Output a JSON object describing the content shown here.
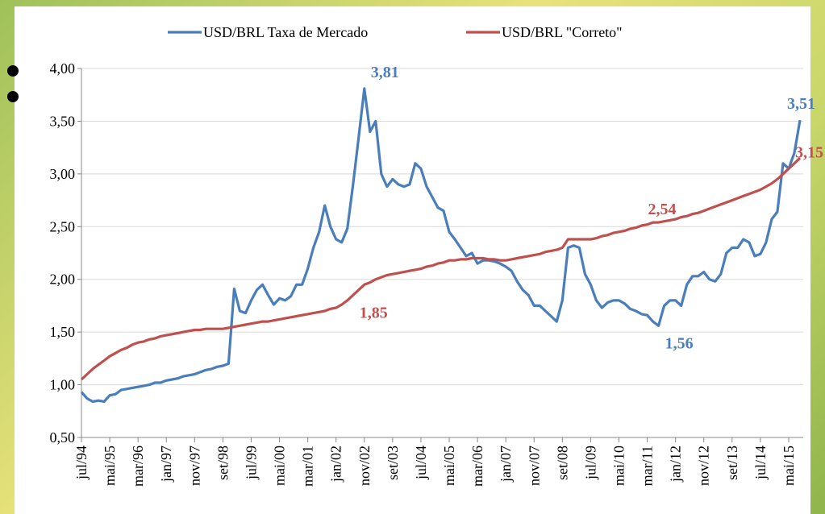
{
  "chart_data": {
    "type": "line",
    "categories": [
      "jul/94",
      null,
      null,
      null,
      null,
      "mai/95",
      null,
      null,
      null,
      null,
      "mar/96",
      null,
      null,
      null,
      null,
      "jan/97",
      null,
      null,
      null,
      null,
      "nov/97",
      null,
      null,
      null,
      null,
      "set/98",
      null,
      null,
      null,
      null,
      "jul/99",
      null,
      null,
      null,
      null,
      "mai/00",
      null,
      null,
      null,
      null,
      "mar/01",
      null,
      null,
      null,
      null,
      "jan/02",
      null,
      null,
      null,
      null,
      "nov/02",
      null,
      null,
      null,
      null,
      "set/03",
      null,
      null,
      null,
      null,
      "jul/04",
      null,
      null,
      null,
      null,
      "mai/05",
      null,
      null,
      null,
      null,
      "mar/06",
      null,
      null,
      null,
      null,
      "jan/07",
      null,
      null,
      null,
      null,
      "nov/07",
      null,
      null,
      null,
      null,
      "set/08",
      null,
      null,
      null,
      null,
      "jul/09",
      null,
      null,
      null,
      null,
      "mai/10",
      null,
      null,
      null,
      null,
      "mar/11",
      null,
      null,
      null,
      null,
      "jan/12",
      null,
      null,
      null,
      null,
      "nov/12",
      null,
      null,
      null,
      null,
      "set/13",
      null,
      null,
      null,
      null,
      "jul/14",
      null,
      null,
      null,
      null,
      "mai/15",
      null,
      null
    ],
    "series": [
      {
        "name": "USD/BRL Taxa de Mercado",
        "color": "#4a7ebb",
        "values": [
          0.93,
          0.87,
          0.84,
          0.85,
          0.84,
          0.9,
          0.91,
          0.95,
          0.96,
          0.97,
          0.98,
          0.99,
          1.0,
          1.02,
          1.02,
          1.04,
          1.05,
          1.06,
          1.08,
          1.09,
          1.1,
          1.12,
          1.14,
          1.15,
          1.17,
          1.18,
          1.2,
          1.91,
          1.7,
          1.68,
          1.8,
          1.9,
          1.95,
          1.85,
          1.76,
          1.82,
          1.8,
          1.84,
          1.95,
          1.95,
          2.1,
          2.3,
          2.45,
          2.7,
          2.5,
          2.38,
          2.35,
          2.48,
          2.9,
          3.35,
          3.81,
          3.4,
          3.5,
          3.0,
          2.88,
          2.95,
          2.9,
          2.88,
          2.9,
          3.1,
          3.05,
          2.88,
          2.78,
          2.68,
          2.65,
          2.45,
          2.38,
          2.3,
          2.22,
          2.25,
          2.15,
          2.18,
          2.18,
          2.17,
          2.15,
          2.12,
          2.08,
          1.98,
          1.9,
          1.85,
          1.75,
          1.75,
          1.7,
          1.65,
          1.6,
          1.8,
          2.3,
          2.32,
          2.3,
          2.05,
          1.95,
          1.8,
          1.73,
          1.78,
          1.8,
          1.8,
          1.77,
          1.72,
          1.7,
          1.67,
          1.66,
          1.6,
          1.56,
          1.75,
          1.8,
          1.8,
          1.75,
          1.95,
          2.03,
          2.03,
          2.07,
          2.0,
          1.98,
          2.05,
          2.25,
          2.3,
          2.3,
          2.38,
          2.35,
          2.22,
          2.24,
          2.35,
          2.57,
          2.64,
          3.1,
          3.05,
          3.2,
          3.51
        ],
        "value_labels": [
          null,
          null,
          null,
          null,
          null,
          null,
          null,
          null,
          null,
          null,
          null,
          null,
          null,
          null,
          null,
          null,
          null,
          null,
          null,
          null,
          null,
          null,
          null,
          null,
          null,
          null,
          null,
          null,
          null,
          null,
          null,
          null,
          null,
          null,
          null,
          null,
          null,
          null,
          null,
          null,
          null,
          null,
          null,
          null,
          null,
          null,
          null,
          null,
          null,
          null,
          "3,81",
          null,
          null,
          null,
          null,
          null,
          null,
          null,
          null,
          null,
          null,
          null,
          null,
          null,
          null,
          null,
          null,
          null,
          null,
          null,
          null,
          null,
          null,
          null,
          null,
          null,
          null,
          null,
          null,
          null,
          null,
          null,
          null,
          null,
          null,
          null,
          null,
          null,
          null,
          null,
          null,
          null,
          null,
          null,
          null,
          null,
          null,
          null,
          null,
          null,
          null,
          null,
          "1,56",
          null,
          null,
          null,
          null,
          null,
          null,
          null,
          null,
          null,
          null,
          null,
          null,
          null,
          null,
          null,
          null,
          null,
          null,
          null,
          null,
          null,
          null,
          null,
          null,
          "3,51"
        ]
      },
      {
        "name": "USD/BRL \"Correto\"",
        "color": "#c0504d",
        "values": [
          1.05,
          1.1,
          1.15,
          1.19,
          1.23,
          1.27,
          1.3,
          1.33,
          1.35,
          1.38,
          1.4,
          1.41,
          1.43,
          1.44,
          1.46,
          1.47,
          1.48,
          1.49,
          1.5,
          1.51,
          1.52,
          1.52,
          1.53,
          1.53,
          1.53,
          1.53,
          1.54,
          1.55,
          1.56,
          1.57,
          1.58,
          1.59,
          1.6,
          1.6,
          1.61,
          1.62,
          1.63,
          1.64,
          1.65,
          1.66,
          1.67,
          1.68,
          1.69,
          1.7,
          1.72,
          1.73,
          1.76,
          1.8,
          1.85,
          1.9,
          1.95,
          1.97,
          2.0,
          2.02,
          2.04,
          2.05,
          2.06,
          2.07,
          2.08,
          2.09,
          2.1,
          2.12,
          2.13,
          2.15,
          2.16,
          2.18,
          2.18,
          2.19,
          2.19,
          2.2,
          2.2,
          2.2,
          2.19,
          2.19,
          2.18,
          2.18,
          2.19,
          2.2,
          2.21,
          2.22,
          2.23,
          2.24,
          2.26,
          2.27,
          2.28,
          2.3,
          2.38,
          2.38,
          2.38,
          2.38,
          2.38,
          2.39,
          2.41,
          2.42,
          2.44,
          2.45,
          2.46,
          2.48,
          2.49,
          2.51,
          2.52,
          2.54,
          2.54,
          2.55,
          2.56,
          2.57,
          2.59,
          2.6,
          2.62,
          2.63,
          2.65,
          2.67,
          2.69,
          2.71,
          2.73,
          2.75,
          2.77,
          2.79,
          2.81,
          2.83,
          2.85,
          2.88,
          2.91,
          2.95,
          3.0,
          3.05,
          3.1,
          3.15
        ],
        "value_labels": [
          null,
          null,
          null,
          null,
          null,
          null,
          null,
          null,
          null,
          null,
          null,
          null,
          null,
          null,
          null,
          null,
          null,
          null,
          null,
          null,
          null,
          null,
          null,
          null,
          null,
          null,
          null,
          null,
          null,
          null,
          null,
          null,
          null,
          null,
          null,
          null,
          null,
          null,
          null,
          null,
          null,
          null,
          null,
          null,
          null,
          null,
          null,
          null,
          "1,85",
          null,
          null,
          null,
          null,
          null,
          null,
          null,
          null,
          null,
          null,
          null,
          null,
          null,
          null,
          null,
          null,
          null,
          null,
          null,
          null,
          null,
          null,
          null,
          null,
          null,
          null,
          null,
          null,
          null,
          null,
          null,
          null,
          null,
          null,
          null,
          null,
          null,
          null,
          null,
          null,
          null,
          null,
          null,
          null,
          null,
          null,
          null,
          null,
          null,
          null,
          "2,54",
          null,
          null,
          null,
          null,
          null,
          null,
          null,
          null,
          null,
          null,
          null,
          null,
          null,
          null,
          null,
          null,
          null,
          null,
          null,
          null,
          null,
          null,
          null,
          null,
          null,
          "3,15"
        ]
      }
    ],
    "ylim": [
      0.5,
      4.0
    ],
    "yticks": [
      {
        "value": 0.5,
        "label": "0,50"
      },
      {
        "value": 1.0,
        "label": "1,00"
      },
      {
        "value": 1.5,
        "label": "1,50"
      },
      {
        "value": 2.0,
        "label": "2,00"
      },
      {
        "value": 2.5,
        "label": "2,50"
      },
      {
        "value": 3.0,
        "label": "3,00"
      },
      {
        "value": 3.5,
        "label": "3,50"
      },
      {
        "value": 4.0,
        "label": "4,00"
      }
    ],
    "grid": true,
    "legend": "top"
  }
}
